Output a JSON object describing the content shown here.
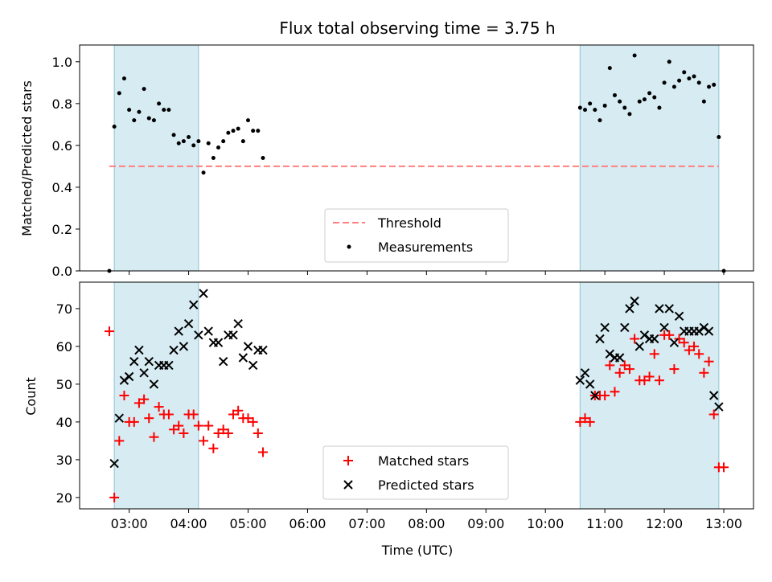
{
  "chart_data": [
    {
      "type": "scatter",
      "title": "Flux total observing time = 3.75 h",
      "xlabel": "",
      "ylabel": "Matched/Predicted stars",
      "ylim": [
        0,
        1.08
      ],
      "yticks": [
        "0.0",
        "0.2",
        "0.4",
        "0.6",
        "0.8",
        "1.0"
      ],
      "threshold": 0.5,
      "threshold_x": [
        "02:40",
        "12:55"
      ],
      "legend_position": "lower-center",
      "legend": [
        {
          "label": "Threshold",
          "kind": "dashed-line",
          "color": "#ff7f7f"
        },
        {
          "label": "Measurements",
          "kind": "dot",
          "color": "#000000"
        }
      ],
      "shaded_intervals": [
        [
          "02:45",
          "04:10"
        ],
        [
          "10:35",
          "12:55"
        ]
      ],
      "series": [
        {
          "color": "#000000",
          "x": [
            "02:40",
            "02:45",
            "02:50",
            "02:55",
            "03:00",
            "03:05",
            "03:10",
            "03:15",
            "03:20",
            "03:25",
            "03:30",
            "03:35",
            "03:40",
            "03:45",
            "03:50",
            "03:55",
            "04:00",
            "04:05",
            "04:10",
            "04:15",
            "04:20",
            "04:25",
            "04:30",
            "04:35",
            "04:40",
            "04:45",
            "04:50",
            "04:55",
            "05:00",
            "05:05",
            "05:10",
            "05:15",
            "10:35",
            "10:40",
            "10:45",
            "10:50",
            "10:55",
            "11:00",
            "11:05",
            "11:10",
            "11:15",
            "11:20",
            "11:25",
            "11:30",
            "11:35",
            "11:40",
            "11:45",
            "11:50",
            "11:55",
            "12:00",
            "12:05",
            "12:10",
            "12:15",
            "12:20",
            "12:25",
            "12:30",
            "12:35",
            "12:40",
            "12:45",
            "12:50",
            "12:55",
            "13:00"
          ],
          "values": [
            0.0,
            0.69,
            0.85,
            0.92,
            0.77,
            0.72,
            0.76,
            0.87,
            0.73,
            0.72,
            0.8,
            0.77,
            0.77,
            0.65,
            0.61,
            0.62,
            0.64,
            0.6,
            0.62,
            0.47,
            0.61,
            0.54,
            0.59,
            0.62,
            0.66,
            0.67,
            0.68,
            0.62,
            0.72,
            0.67,
            0.67,
            0.54,
            0.78,
            0.77,
            0.8,
            0.77,
            0.72,
            0.79,
            0.97,
            0.84,
            0.81,
            0.78,
            0.75,
            1.03,
            0.81,
            0.82,
            0.85,
            0.83,
            0.78,
            0.9,
            1.0,
            0.88,
            0.91,
            0.95,
            0.92,
            0.93,
            0.9,
            0.81,
            0.88,
            0.89,
            0.64,
            0.0
          ]
        }
      ]
    },
    {
      "type": "scatter",
      "title": "",
      "xlabel": "Time (UTC)",
      "ylabel": "Count",
      "ylim": [
        17,
        77
      ],
      "yticks": [
        "20",
        "30",
        "40",
        "50",
        "60",
        "70"
      ],
      "xticks": [
        "03:00",
        "04:00",
        "05:00",
        "06:00",
        "07:00",
        "08:00",
        "09:00",
        "10:00",
        "11:00",
        "12:00",
        "13:00"
      ],
      "legend_position": "lower-center",
      "shaded_intervals": [
        [
          "02:45",
          "04:10"
        ],
        [
          "10:35",
          "12:55"
        ]
      ],
      "series": [
        {
          "name": "Matched stars",
          "marker": "plus",
          "color": "#ff0000",
          "x": [
            "02:40",
            "02:45",
            "02:50",
            "02:55",
            "03:00",
            "03:05",
            "03:10",
            "03:15",
            "03:20",
            "03:25",
            "03:30",
            "03:35",
            "03:40",
            "03:45",
            "03:50",
            "03:55",
            "04:00",
            "04:05",
            "04:10",
            "04:15",
            "04:20",
            "04:25",
            "04:30",
            "04:35",
            "04:40",
            "04:45",
            "04:50",
            "04:55",
            "05:00",
            "05:05",
            "05:10",
            "05:15",
            "10:35",
            "10:40",
            "10:45",
            "10:50",
            "10:55",
            "11:00",
            "11:05",
            "11:10",
            "11:15",
            "11:20",
            "11:25",
            "11:30",
            "11:35",
            "11:40",
            "11:45",
            "11:50",
            "11:55",
            "12:00",
            "12:05",
            "12:10",
            "12:15",
            "12:20",
            "12:25",
            "12:30",
            "12:35",
            "12:40",
            "12:45",
            "12:50",
            "12:55",
            "13:00"
          ],
          "values": [
            64,
            20,
            35,
            47,
            40,
            40,
            45,
            46,
            41,
            36,
            44,
            42,
            42,
            38,
            39,
            37,
            42,
            42,
            39,
            35,
            39,
            33,
            37,
            38,
            37,
            42,
            43,
            41,
            41,
            40,
            37,
            32,
            40,
            41,
            40,
            47,
            47,
            47,
            55,
            48,
            53,
            55,
            54,
            62,
            51,
            51,
            52,
            58,
            51,
            63,
            63,
            54,
            62,
            61,
            59,
            60,
            58,
            53,
            56,
            42,
            28,
            28
          ]
        },
        {
          "name": "Predicted stars",
          "marker": "x",
          "color": "#000000",
          "x": [
            "02:45",
            "02:50",
            "02:55",
            "03:00",
            "03:05",
            "03:10",
            "03:15",
            "03:20",
            "03:25",
            "03:30",
            "03:35",
            "03:40",
            "03:45",
            "03:50",
            "03:55",
            "04:00",
            "04:05",
            "04:10",
            "04:15",
            "04:20",
            "04:25",
            "04:30",
            "04:35",
            "04:40",
            "04:45",
            "04:50",
            "04:55",
            "05:00",
            "05:05",
            "05:10",
            "05:15",
            "10:35",
            "10:40",
            "10:45",
            "10:50",
            "10:55",
            "11:00",
            "11:05",
            "11:10",
            "11:15",
            "11:20",
            "11:25",
            "11:30",
            "11:35",
            "11:40",
            "11:45",
            "11:50",
            "11:55",
            "12:00",
            "12:05",
            "12:10",
            "12:15",
            "12:20",
            "12:25",
            "12:30",
            "12:35",
            "12:40",
            "12:45",
            "12:50",
            "12:55"
          ],
          "values": [
            29,
            41,
            51,
            52,
            56,
            59,
            53,
            56,
            50,
            55,
            55,
            55,
            59,
            64,
            60,
            66,
            71,
            63,
            74,
            64,
            61,
            61,
            56,
            63,
            63,
            66,
            57,
            60,
            55,
            59,
            59,
            51,
            53,
            50,
            47,
            62,
            65,
            58,
            57,
            57,
            65,
            70,
            72,
            60,
            63,
            62,
            62,
            70,
            65,
            70,
            61,
            68,
            64,
            64,
            64,
            64,
            65,
            64,
            47,
            44
          ]
        }
      ]
    }
  ]
}
